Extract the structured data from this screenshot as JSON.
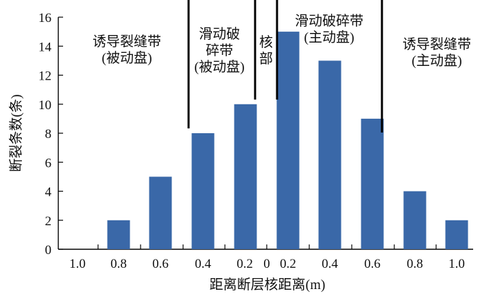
{
  "chart_data": {
    "type": "bar",
    "xlabel": "距离断层核距离(m)",
    "ylabel": "断裂条数(条)",
    "ylim": [
      0,
      16
    ],
    "yticks": [
      0,
      2,
      4,
      6,
      8,
      10,
      12,
      14,
      16
    ],
    "x_tick_labels": [
      "1.0",
      "0.8",
      "0.6",
      "0.4",
      "0.2",
      "0",
      "0.2",
      "0.4",
      "0.6",
      "0.8",
      "1.0"
    ],
    "categories": [
      "1.0",
      "0.8",
      "0.6",
      "0.4",
      "0.2",
      "0.2",
      "0.4",
      "0.6",
      "0.8",
      "1.0"
    ],
    "values": [
      0,
      2,
      5,
      8,
      10,
      15,
      13,
      9,
      4,
      2
    ],
    "zones": [
      {
        "lines": [
          "诱导裂缝带",
          "(被动盘)"
        ]
      },
      {
        "lines": [
          "滑动破",
          "碎带",
          "(被动盘)"
        ]
      },
      {
        "lines": [
          "核",
          "部"
        ]
      },
      {
        "lines": [
          "滑动破碎带",
          "(主动盘)"
        ]
      },
      {
        "lines": [
          "诱导裂缝带",
          "(主动盘)"
        ]
      }
    ],
    "bar_color": "#3a68a8",
    "grid": false
  }
}
